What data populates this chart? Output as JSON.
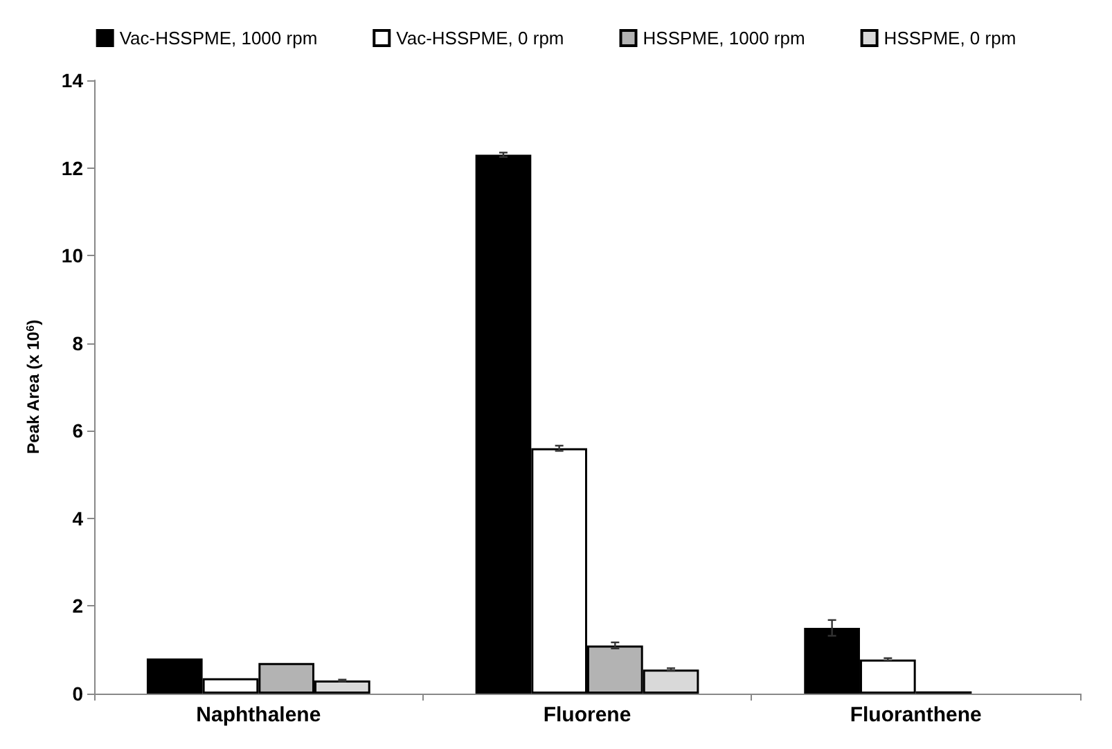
{
  "chart_data": {
    "type": "bar",
    "ylabel": "Peak Area (x 10$^{6}$)",
    "categories": [
      "Naphthalene",
      "Fluorene",
      "Fluoranthene"
    ],
    "series": [
      {
        "name": "Vac-HSSPME, 1000 rpm",
        "color": "#000000",
        "values": [
          0.8,
          12.3,
          1.5
        ],
        "errors": [
          null,
          0.05,
          0.18
        ]
      },
      {
        "name": "Vac-HSSPME, 0 rpm",
        "color": "#ffffff",
        "values": [
          0.35,
          5.6,
          0.78
        ],
        "errors": [
          null,
          0.06,
          0.03
        ]
      },
      {
        "name": "HSSPME, 1000 rpm",
        "color": "#b3b3b3",
        "values": [
          0.7,
          1.1,
          0.05
        ],
        "errors": [
          null,
          0.07,
          null
        ]
      },
      {
        "name": "HSSPME, 0 rpm",
        "color": "#d9d9d9",
        "values": [
          0.3,
          0.55,
          null
        ],
        "errors": [
          0.02,
          0.03,
          null
        ]
      }
    ],
    "ylim": [
      0,
      14
    ],
    "yticks": [
      0,
      2,
      4,
      6,
      8,
      10,
      12,
      14
    ],
    "grid": false,
    "legend": "top"
  }
}
